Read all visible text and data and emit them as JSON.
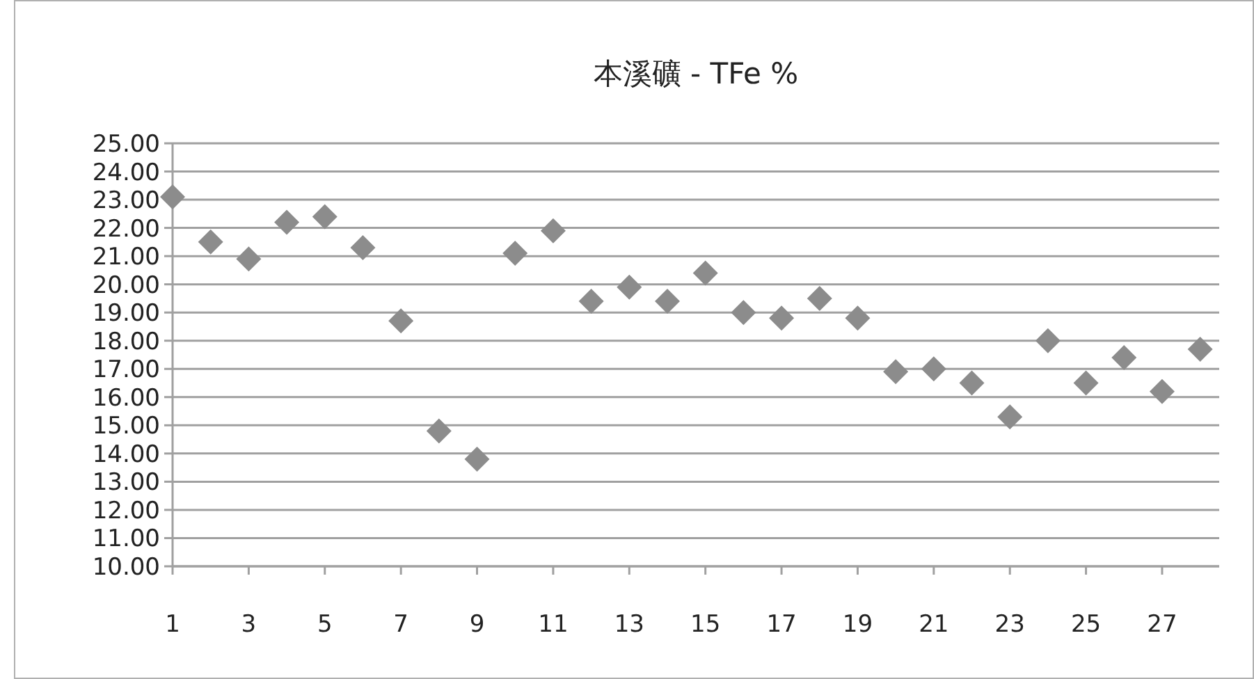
{
  "chart_data": {
    "type": "scatter",
    "title": "本溪礦  - TFe %",
    "x": [
      1,
      2,
      3,
      4,
      5,
      6,
      7,
      8,
      9,
      10,
      11,
      12,
      13,
      14,
      15,
      16,
      17,
      18,
      19,
      20,
      21,
      22,
      23,
      24,
      25,
      26,
      27,
      28
    ],
    "series": [
      {
        "color": "#8c8c8c",
        "values": [
          23.1,
          21.5,
          20.9,
          22.2,
          22.4,
          21.3,
          18.7,
          14.8,
          13.8,
          21.1,
          21.9,
          19.4,
          19.9,
          19.4,
          20.4,
          19.0,
          18.8,
          19.5,
          18.8,
          16.9,
          17.0,
          16.5,
          15.3,
          18.0,
          16.5,
          17.4,
          16.2,
          17.7
        ]
      }
    ],
    "marker": "diamond",
    "xlim": [
      1,
      28.5
    ],
    "xticks": [
      1,
      3,
      5,
      7,
      9,
      11,
      13,
      15,
      17,
      19,
      21,
      23,
      25,
      27
    ],
    "ylim": [
      10,
      25
    ],
    "yticks": [
      {
        "value": 10,
        "label": "10.00"
      },
      {
        "value": 11,
        "label": "11.00"
      },
      {
        "value": 12,
        "label": "12.00"
      },
      {
        "value": 13,
        "label": "13.00"
      },
      {
        "value": 14,
        "label": "14.00"
      },
      {
        "value": 15,
        "label": "15.00"
      },
      {
        "value": 16,
        "label": "16.00"
      },
      {
        "value": 17,
        "label": "17.00"
      },
      {
        "value": 18,
        "label": "18.00"
      },
      {
        "value": 19,
        "label": "19.00"
      },
      {
        "value": 20,
        "label": "20.00"
      },
      {
        "value": 21,
        "label": "21.00"
      },
      {
        "value": 22,
        "label": "22.00"
      },
      {
        "value": 23,
        "label": "23.00"
      },
      {
        "value": 24,
        "label": "24.00"
      },
      {
        "value": 25,
        "label": "25.00"
      }
    ],
    "grid": "y"
  }
}
